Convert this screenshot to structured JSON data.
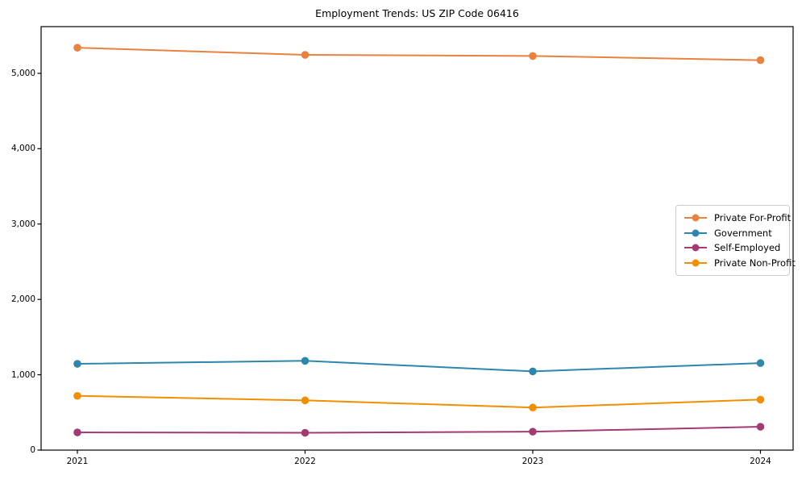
{
  "chart_data": {
    "type": "line",
    "title": "Employment Trends: US ZIP Code 06416",
    "categories": [
      "2021",
      "2022",
      "2023",
      "2024"
    ],
    "series": [
      {
        "name": "Private For-Profit",
        "color": "#E8823E",
        "values": [
          5340,
          5245,
          5230,
          5175
        ]
      },
      {
        "name": "Government",
        "color": "#2E86AB",
        "values": [
          1145,
          1185,
          1045,
          1155
        ]
      },
      {
        "name": "Self-Employed",
        "color": "#A23B72",
        "values": [
          235,
          230,
          245,
          310
        ]
      },
      {
        "name": "Private Non-Profit",
        "color": "#F18F01",
        "values": [
          720,
          660,
          565,
          670
        ]
      }
    ],
    "xlabel": "",
    "ylabel": "",
    "ylim": [
      0,
      5620
    ],
    "yticks": [
      0,
      1000,
      2000,
      3000,
      4000,
      5000
    ],
    "ytick_labels": [
      "0",
      "1,000",
      "2,000",
      "3,000",
      "4,000",
      "5,000"
    ],
    "grid": false,
    "legend_position": "center right",
    "marker": "circle",
    "axis_color": "#000000",
    "background_color": "#ffffff"
  }
}
